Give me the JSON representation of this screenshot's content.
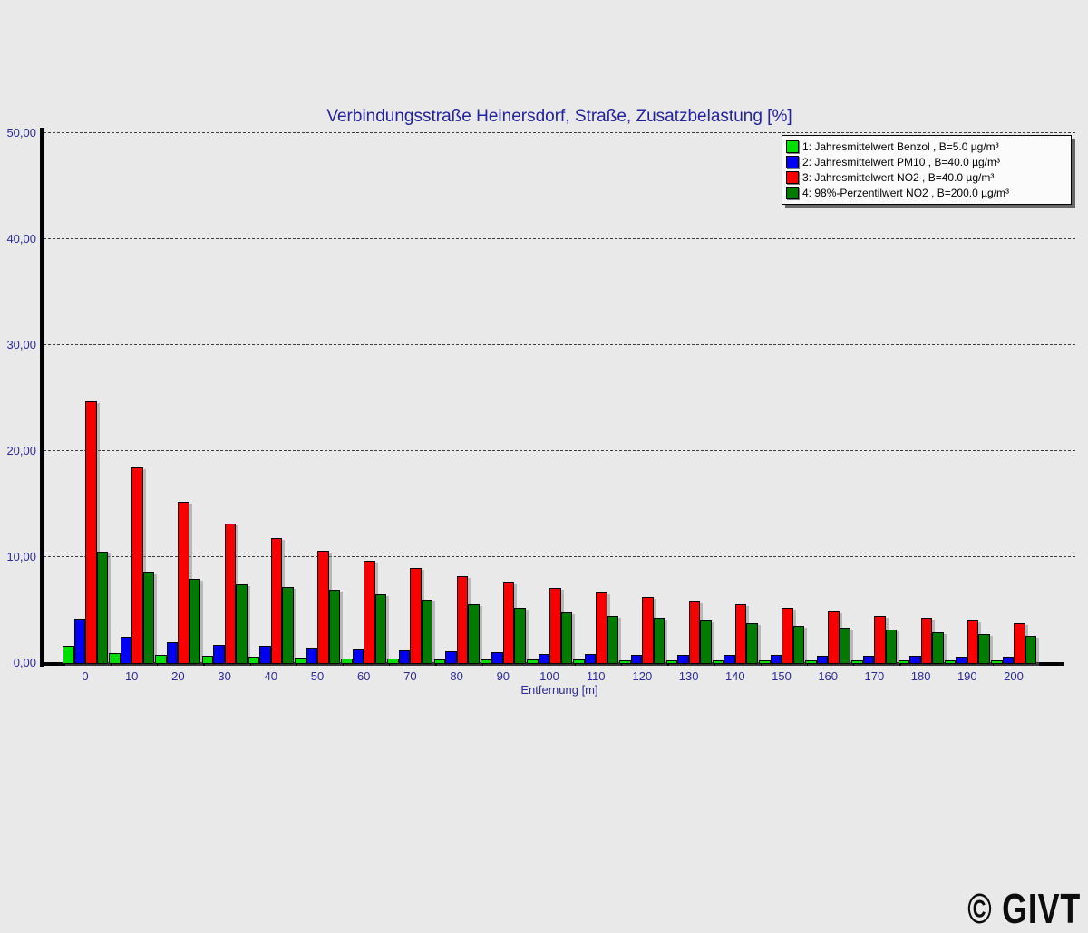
{
  "title": "Verbindungsstraße Heinersdorf, Straße, Zusatzbelastung [%]",
  "watermark": "© GIVT",
  "axes": {
    "x_title": "Entfernung [m]",
    "y_tick_labels": [
      "0,00",
      "10,00",
      "20,00",
      "30,00",
      "40,00",
      "50,00"
    ],
    "y_tick_values": [
      0,
      10,
      20,
      30,
      40,
      50
    ]
  },
  "legend": {
    "items": [
      {
        "label": "1: Jahresmittelwert Benzol , B=5.0 µg/m³",
        "color": "#00DF00"
      },
      {
        "label": "2: Jahresmittelwert PM10 , B=40.0 µg/m³",
        "color": "#0000F2"
      },
      {
        "label": "3: Jahresmittelwert NO2 , B=40.0 µg/m³",
        "color": "#F80000"
      },
      {
        "label": "4: 98%-Perzentilwert NO2 , B=200.0 µg/m³",
        "color": "#007B00"
      }
    ]
  },
  "chart_data": {
    "type": "bar",
    "title": "Verbindungsstraße Heinersdorf, Straße, Zusatzbelastung [%]",
    "xlabel": "Entfernung [m]",
    "ylabel": "",
    "ylim": [
      0,
      50
    ],
    "grid": "dashed horizontal lines every 10",
    "legend_position": "top-right",
    "categories": [
      0,
      10,
      20,
      30,
      40,
      50,
      60,
      70,
      80,
      90,
      100,
      110,
      120,
      130,
      140,
      150,
      160,
      170,
      180,
      190,
      200
    ],
    "series": [
      {
        "name": "1: Jahresmittelwert Benzol , B=5.0 µg/m³",
        "color": "#00DF00",
        "values": [
          1.5,
          0.85,
          0.7,
          0.6,
          0.5,
          0.45,
          0.35,
          0.3,
          0.28,
          0.25,
          0.23,
          0.22,
          0.21,
          0.2,
          0.2,
          0.19,
          0.18,
          0.18,
          0.17,
          0.16,
          0.15
        ]
      },
      {
        "name": "2: Jahresmittelwert PM10 , B=40.0 µg/m³",
        "color": "#0000F2",
        "values": [
          4.1,
          2.4,
          1.9,
          1.65,
          1.5,
          1.35,
          1.2,
          1.1,
          1.0,
          0.9,
          0.8,
          0.75,
          0.72,
          0.7,
          0.68,
          0.65,
          0.62,
          0.6,
          0.57,
          0.55,
          0.52
        ]
      },
      {
        "name": "3: Jahresmittelwert NO2 , B=40.0 µg/m³",
        "color": "#F80000",
        "values": [
          24.6,
          18.4,
          15.1,
          13.1,
          11.7,
          10.5,
          9.6,
          8.85,
          8.1,
          7.5,
          7.0,
          6.55,
          6.15,
          5.75,
          5.45,
          5.1,
          4.8,
          4.4,
          4.15,
          3.9,
          3.65
        ]
      },
      {
        "name": "4: 98%-Perzentilwert NO2 , B=200.0 µg/m³",
        "color": "#007B00",
        "values": [
          10.4,
          8.5,
          7.9,
          7.35,
          7.1,
          6.8,
          6.45,
          5.9,
          5.45,
          5.1,
          4.7,
          4.4,
          4.15,
          3.95,
          3.7,
          3.45,
          3.25,
          3.05,
          2.85,
          2.65,
          2.45
        ]
      }
    ]
  }
}
